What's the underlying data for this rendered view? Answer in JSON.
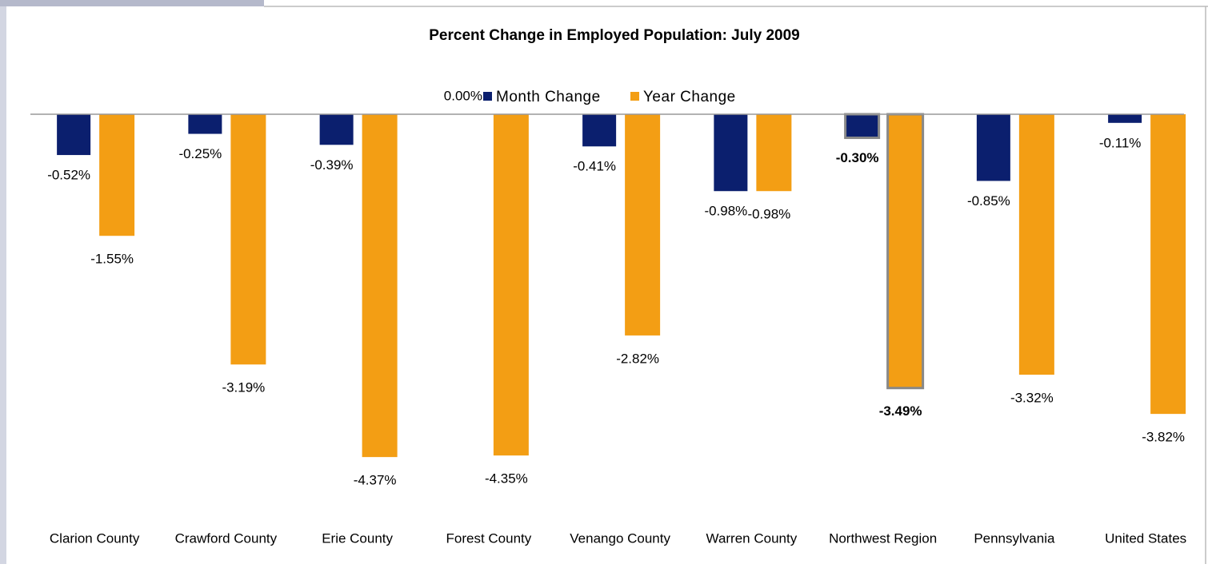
{
  "chart_data": {
    "type": "bar",
    "title": "Percent Change in Employed Population:  July 2009",
    "categories": [
      "Clarion County",
      "Crawford County",
      "Erie County",
      "Forest County",
      "Venango County",
      "Warren County",
      "Northwest Region",
      "Pennsylvania",
      "United States"
    ],
    "series": [
      {
        "name": "Month Change",
        "color": "#0b1f6e",
        "values": [
          -0.52,
          -0.25,
          -0.39,
          0.0,
          -0.41,
          -0.98,
          -0.3,
          -0.85,
          -0.11
        ],
        "value_labels": [
          "-0.52%",
          "-0.25%",
          "-0.39%",
          "0.00%",
          "-0.41%",
          "-0.98%",
          "-0.30%",
          "-0.85%",
          "-0.11%"
        ]
      },
      {
        "name": "Year Change",
        "color": "#f39e14",
        "values": [
          -1.55,
          -3.19,
          -4.37,
          -4.35,
          -2.82,
          -0.98,
          -3.49,
          -3.32,
          -3.82
        ],
        "value_labels": [
          "-1.55%",
          "-3.19%",
          "-4.37%",
          "-4.35%",
          "-2.82%",
          "-0.98%",
          "-3.49%",
          "-3.32%",
          "-3.82%"
        ]
      }
    ],
    "ylim": [
      -5,
      0
    ],
    "legend": "top",
    "highlight_index": 6
  }
}
